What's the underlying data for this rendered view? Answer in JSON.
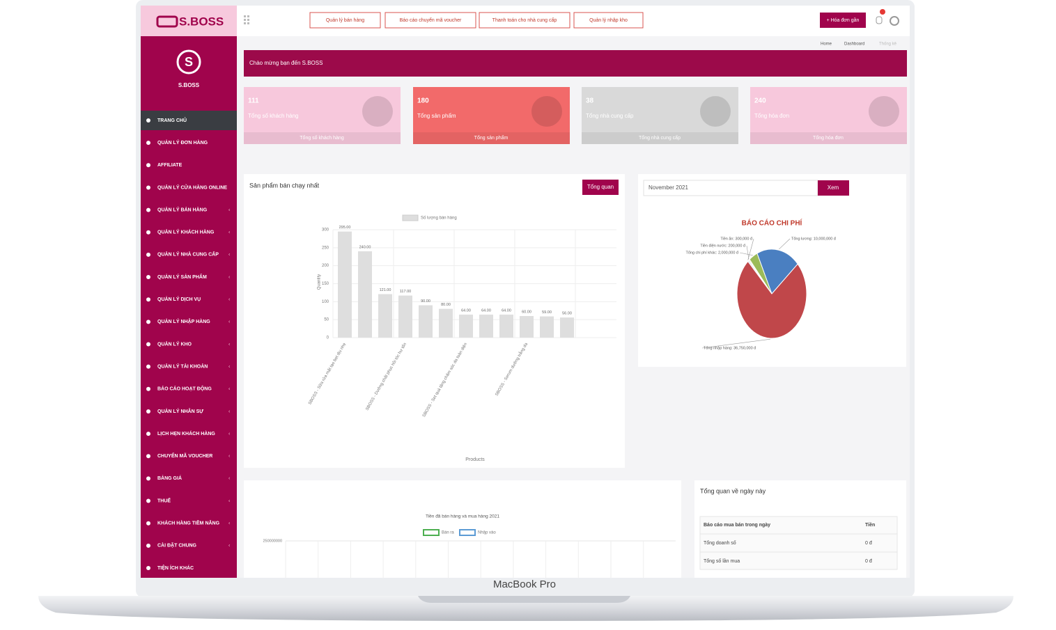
{
  "brand": "S.BOSS",
  "logo_caption": "S.BOSS",
  "top_buttons": [
    "Quản lý bán hàng",
    "Báo cáo chuyển mã voucher",
    "Thanh toán cho nhà cung cấp",
    "Quản lý nhập kho"
  ],
  "top_action": "+ Hóa đơn gần",
  "breadcrumb": [
    "Home",
    "Dashboard",
    "Thống kê"
  ],
  "welcome": "Chào mừng bạn đến S.BOSS",
  "menu": [
    "TRANG CHỦ",
    "QUẢN LÝ ĐƠN HÀNG",
    "AFFILIATE",
    "QUẢN LÝ CỬA HÀNG ONLINE",
    "QUẢN LÝ BÁN HÀNG",
    "QUẢN LÝ KHÁCH HÀNG",
    "QUẢN LÝ NHÀ CUNG CẤP",
    "QUẢN LÝ SẢN PHẨM",
    "QUẢN LÝ DỊCH VỤ",
    "QUẢN LÝ NHẬP HÀNG",
    "QUẢN LÝ KHO",
    "QUẢN LÝ TÀI KHOẢN",
    "BÁO CÁO HOẠT ĐỘNG",
    "QUẢN LÝ NHÂN SỰ",
    "LỊCH HẸN KHÁCH HÀNG",
    "CHUYỂN MÃ VOUCHER",
    "BẢNG GIÁ",
    "THUẾ",
    "KHÁCH HÀNG TIỀM NĂNG",
    "CÀI ĐẶT CHUNG",
    "TIỆN ÍCH KHÁC"
  ],
  "stats": [
    {
      "value": "111",
      "label": "Tổng số khách hàng",
      "footer": "Tổng số khách hàng"
    },
    {
      "value": "180",
      "label": "Tổng sản phẩm",
      "footer": "Tổng sản phẩm"
    },
    {
      "value": "38",
      "label": "Tổng nhà cung cấp",
      "footer": "Tổng nhà cung cấp"
    },
    {
      "value": "240",
      "label": "Tổng hóa đơn",
      "footer": "Tổng hóa đơn"
    }
  ],
  "bar_panel": {
    "title": "Sản phẩm bán chạy nhất",
    "button": "Tổng quan"
  },
  "pie_panel": {
    "month": "November 2021",
    "button": "Xem"
  },
  "line_panel": {},
  "daily": {
    "title": "Tổng quan về ngày này",
    "header": [
      "Báo cáo mua bán trong ngày",
      "Tiền"
    ],
    "rows": [
      [
        "Tổng doanh số",
        "0 đ"
      ],
      [
        "Tổng số lần mua",
        "0 đ"
      ]
    ]
  },
  "device_label": "MacBook Pro",
  "chart_data": [
    {
      "type": "bar",
      "legend": "Số lượng bán hàng",
      "ylabel": "Quantity",
      "xlabel": "Products",
      "color": "#dedede",
      "categories": [
        "SBOSS - Sữa rửa mặt tạo bọt dịu nhẹ",
        null,
        null,
        "SBOSS - Dưỡng chất phục hồi tóc hư tổn",
        null,
        null,
        "SBOSS - Set quà tặng chăm sóc da toàn diện",
        null,
        null,
        "SBOSS - Serum dưỡng trắng da",
        null,
        null
      ],
      "values": [
        295,
        240,
        121,
        117,
        90,
        80,
        64,
        64,
        64,
        60,
        59,
        56
      ],
      "value_labels": [
        "295.00",
        "240.00",
        "121.00",
        "117.00",
        "90.00",
        "80.00",
        "64.00",
        "64.00",
        "64.00",
        "60.00",
        "59.00",
        "56.00"
      ],
      "ylim": [
        0,
        300
      ],
      "yticks": [
        0,
        50,
        100,
        150,
        200,
        250,
        300
      ],
      "grid": true
    },
    {
      "type": "pie",
      "title": "BÁO CÁO CHI PHÍ",
      "categories": [
        "Tổng lương",
        "Tổng nhập hàng",
        "Tiền ăn",
        "Tiền điện nước",
        "Tổng chi phí khác"
      ],
      "values": [
        10000000,
        36750000,
        300000,
        200000,
        2000000
      ],
      "value_labels": [
        "Tổng lương: 10,000,000 đ",
        "Tổng nhập hàng: 36,750,000 đ",
        "Tiền ăn: 300,000 đ",
        "Tiền điện nước: 200,000 đ",
        "Tổng chi phí khác: 2,000,000 đ"
      ],
      "colors": [
        "#4a7fc1",
        "#c0474a",
        "#d6e2f0",
        "#f0d090",
        "#9bbb59"
      ]
    },
    {
      "type": "line",
      "title": "Tiền đã bán hàng và mua hàng 2021",
      "series": [
        {
          "name": "Bán ra",
          "color": "#4caf50"
        },
        {
          "name": "Nhập vào",
          "color": "#5b9bd5"
        }
      ],
      "ylim": [
        0,
        250000000
      ],
      "yticks": [
        250000000
      ],
      "grid": true
    }
  ]
}
